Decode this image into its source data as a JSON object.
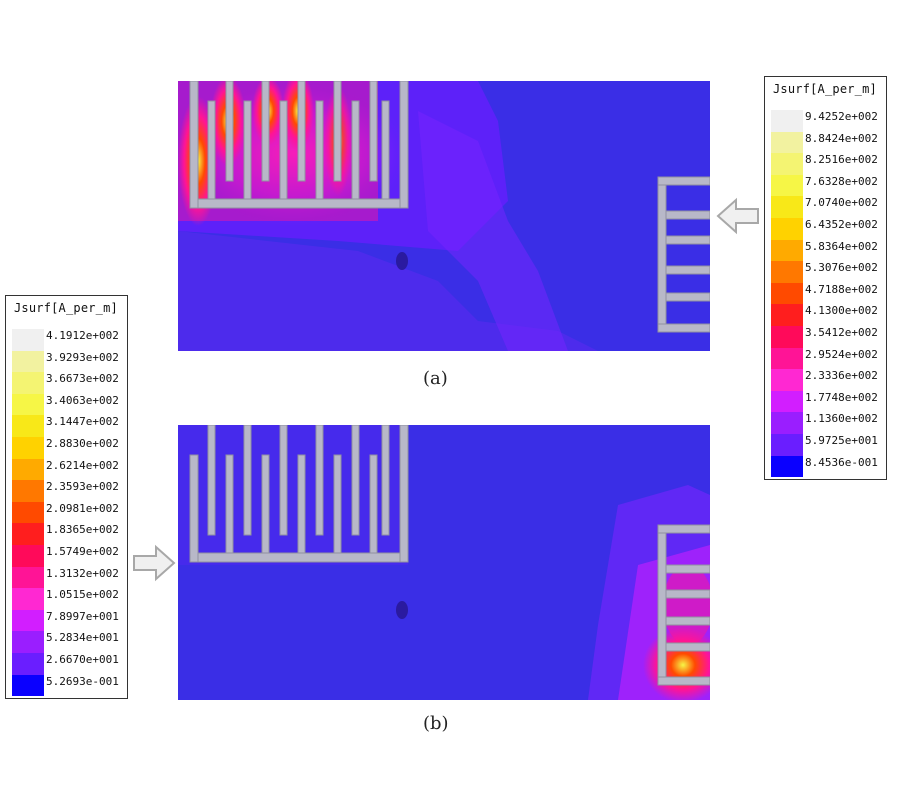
{
  "panel_a": {
    "caption": "(a)"
  },
  "panel_b": {
    "caption": "(b)"
  },
  "legend_right": {
    "title": "Jsurf[A_per_m]",
    "values": [
      "9.4252e+002",
      "8.8424e+002",
      "8.2516e+002",
      "7.6328e+002",
      "7.0740e+002",
      "6.4352e+002",
      "5.8364e+002",
      "5.3076e+002",
      "4.7188e+002",
      "4.1300e+002",
      "3.5412e+002",
      "2.9524e+002",
      "2.3336e+002",
      "1.7748e+002",
      "1.1360e+002",
      "5.9725e+001",
      "8.4536e-001"
    ]
  },
  "legend_left": {
    "title": "Jsurf[A_per_m]",
    "values": [
      "4.1912e+002",
      "3.9293e+002",
      "3.6673e+002",
      "3.4063e+002",
      "3.1447e+002",
      "2.8830e+002",
      "2.6214e+002",
      "2.3593e+002",
      "2.0981e+002",
      "1.8365e+002",
      "1.5749e+002",
      "1.3132e+002",
      "1.0515e+002",
      "7.8997e+001",
      "5.2834e+001",
      "2.6670e+001",
      "5.2693e-001"
    ]
  },
  "colors": [
    "#f0f0f0",
    "#f2f2a0",
    "#f4f472",
    "#f6f646",
    "#f8e818",
    "#ffd200",
    "#ffaa00",
    "#ff7800",
    "#ff4a00",
    "#ff1e1e",
    "#ff0a5a",
    "#ff1496",
    "#ff28d2",
    "#d21eff",
    "#9a1eff",
    "#6a1eff",
    "#0a00ff"
  ]
}
